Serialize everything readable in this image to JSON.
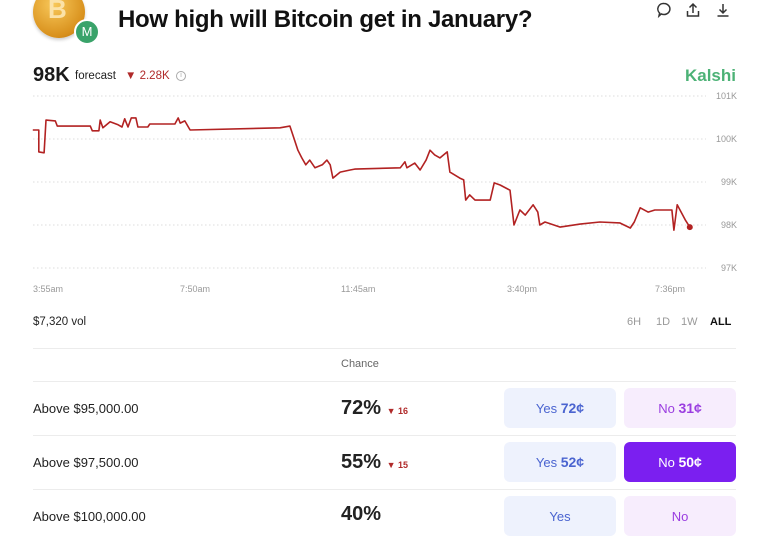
{
  "header": {
    "logo_letter": "B",
    "badge_letter": "M",
    "title": "How high will Bitcoin get in January?",
    "icons": [
      "comment-icon",
      "share-icon",
      "download-icon"
    ]
  },
  "forecast": {
    "value": "98K",
    "label": "forecast",
    "change": "2.28K",
    "change_direction": "down",
    "source": "Kalshi"
  },
  "chart_data": {
    "type": "line",
    "y_ticks": [
      "101K",
      "100K",
      "99K",
      "98K",
      "97K"
    ],
    "x_ticks": [
      "3:55am",
      "7:50am",
      "11:45am",
      "3:40pm",
      "7:36pm"
    ],
    "ylim": [
      97,
      101
    ],
    "y_unit": "K",
    "grid": true,
    "color": "#b22222",
    "points": [
      [
        "03:29",
        100.21
      ],
      [
        "03:38",
        100.21
      ],
      [
        "03:38",
        99.7
      ],
      [
        "03:46",
        99.68
      ],
      [
        "03:49",
        100.44
      ],
      [
        "04:03",
        100.42
      ],
      [
        "04:06",
        100.3
      ],
      [
        "04:56",
        100.3
      ],
      [
        "04:59",
        100.19
      ],
      [
        "05:09",
        100.19
      ],
      [
        "05:11",
        100.44
      ],
      [
        "05:15",
        100.26
      ],
      [
        "05:26",
        100.4
      ],
      [
        "05:38",
        100.33
      ],
      [
        "05:44",
        100.28
      ],
      [
        "05:48",
        100.47
      ],
      [
        "05:53",
        100.28
      ],
      [
        "05:58",
        100.49
      ],
      [
        "06:05",
        100.49
      ],
      [
        "06:08",
        100.28
      ],
      [
        "06:23",
        100.28
      ],
      [
        "06:26",
        100.35
      ],
      [
        "07:04",
        100.35
      ],
      [
        "07:09",
        100.49
      ],
      [
        "07:12",
        100.37
      ],
      [
        "07:19",
        100.42
      ],
      [
        "07:27",
        100.21
      ],
      [
        "09:43",
        100.26
      ],
      [
        "09:58",
        100.3
      ],
      [
        "10:04",
        100.02
      ],
      [
        "10:10",
        99.74
      ],
      [
        "10:16",
        99.56
      ],
      [
        "10:22",
        99.4
      ],
      [
        "10:28",
        99.51
      ],
      [
        "10:36",
        99.33
      ],
      [
        "10:47",
        99.4
      ],
      [
        "10:54",
        99.51
      ],
      [
        "10:59",
        99.4
      ],
      [
        "11:03",
        99.09
      ],
      [
        "11:14",
        99.23
      ],
      [
        "11:29",
        99.28
      ],
      [
        "11:36",
        99.3
      ],
      [
        "12:45",
        99.33
      ],
      [
        "12:52",
        99.47
      ],
      [
        "12:55",
        99.33
      ],
      [
        "13:07",
        99.44
      ],
      [
        "13:15",
        99.28
      ],
      [
        "13:24",
        99.51
      ],
      [
        "13:30",
        99.74
      ],
      [
        "13:37",
        99.63
      ],
      [
        "13:45",
        99.56
      ],
      [
        "13:56",
        99.7
      ],
      [
        "14:00",
        99.23
      ],
      [
        "14:15",
        99.09
      ],
      [
        "14:21",
        99.05
      ],
      [
        "14:24",
        98.58
      ],
      [
        "14:30",
        98.7
      ],
      [
        "14:38",
        98.58
      ],
      [
        "15:01",
        98.58
      ],
      [
        "15:07",
        98.98
      ],
      [
        "15:16",
        98.93
      ],
      [
        "15:31",
        98.81
      ],
      [
        "15:37",
        98.0
      ],
      [
        "15:46",
        98.35
      ],
      [
        "15:54",
        98.23
      ],
      [
        "16:06",
        98.47
      ],
      [
        "16:13",
        98.3
      ],
      [
        "16:16",
        98.0
      ],
      [
        "16:24",
        98.07
      ],
      [
        "16:47",
        97.95
      ],
      [
        "17:17",
        98.02
      ],
      [
        "17:47",
        98.07
      ],
      [
        "18:17",
        98.05
      ],
      [
        "18:33",
        97.93
      ],
      [
        "18:39",
        98.07
      ],
      [
        "18:48",
        98.4
      ],
      [
        "19:00",
        98.3
      ],
      [
        "19:10",
        98.35
      ],
      [
        "19:36",
        98.35
      ],
      [
        "19:39",
        97.88
      ],
      [
        "19:44",
        98.47
      ],
      [
        "19:56",
        98.12
      ],
      [
        "20:03",
        97.95
      ]
    ]
  },
  "volume": "$7,320 vol",
  "ranges": [
    {
      "label": "6H",
      "active": false
    },
    {
      "label": "1D",
      "active": false
    },
    {
      "label": "1W",
      "active": false
    },
    {
      "label": "ALL",
      "active": true
    }
  ],
  "table": {
    "chance_header": "Chance",
    "rows": [
      {
        "label": "Above $95,000.00",
        "chance": "72%",
        "delta": "16",
        "yes_label": "Yes",
        "yes_price": "72¢",
        "no_label": "No",
        "no_price": "31¢",
        "no_active": false
      },
      {
        "label": "Above $97,500.00",
        "chance": "55%",
        "delta": "15",
        "yes_label": "Yes",
        "yes_price": "52¢",
        "no_label": "No",
        "no_price": "50¢",
        "no_active": true
      },
      {
        "label": "Above $100,000.00",
        "chance": "40%",
        "delta": "",
        "yes_label": "Yes",
        "yes_price": "",
        "no_label": "No",
        "no_price": "",
        "no_active": false
      }
    ]
  }
}
